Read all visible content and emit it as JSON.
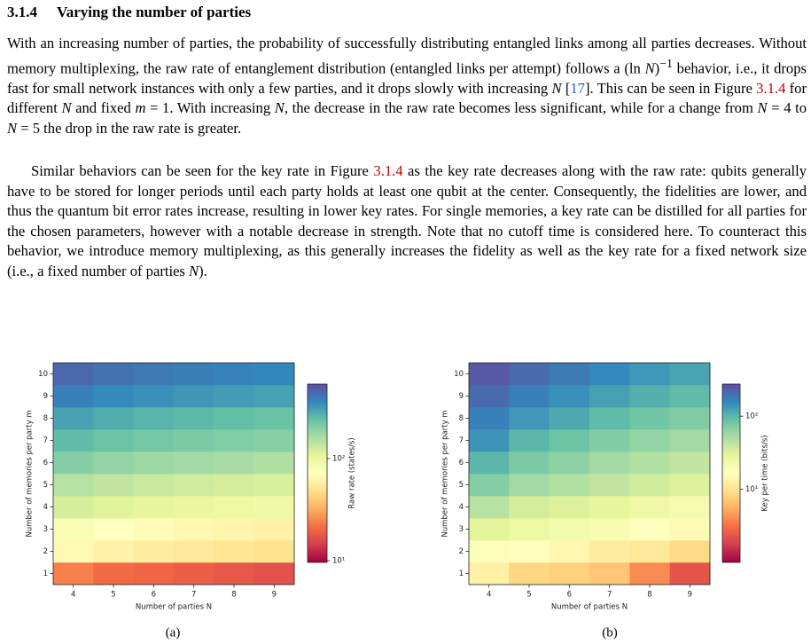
{
  "heading": {
    "number": "3.1.4",
    "title": "Varying the number of parties"
  },
  "paragraphs": [
    [
      "With an increasing number of parties, the probability of successfully distributing entangled links among all parties decreases. Without memory multiplexing, the raw rate of entanglement distribution (entangled links per attempt) follows a ",
      "(ln ",
      "N",
      ")",
      "−1",
      " behavior, i.e., it drops fast for small network instances with only a few parties, and it drops slowly with increasing ",
      "N",
      " [",
      "17",
      "]. This can be seen in Figure ",
      "3.1.4",
      " for different ",
      "N",
      " and fixed ",
      "m",
      " = 1. With increasing ",
      "N",
      ", the decrease in the raw rate becomes less significant, while for a change from ",
      "N",
      " = 4 to ",
      "N",
      " = 5 the drop in the raw rate is greater."
    ],
    [
      "Similar behaviors can be seen for the key rate in Figure ",
      "3.1.4",
      " as the key rate decreases along with the raw rate: qubits generally have to be stored for longer periods until each party holds at least one qubit at the center. Consequently, the fidelities are lower, and thus the quantum bit error rates increase, resulting in lower key rates. For single memories, a key rate can be distilled for all parties for the chosen parameters, however with a notable decrease in strength.  Note that no cutoff time is considered here.  To counteract this behavior, we introduce memory multiplexing, as this generally increases the fidelity as well as the key rate for a fixed network size (i.e., a fixed number of parties ",
      "N",
      ")."
    ]
  ],
  "chart_data": [
    {
      "type": "heatmap",
      "caption": "(a)",
      "xlabel": "Number of parties N",
      "ylabel": "Number of memories per party m",
      "colorbar_label": "Raw rate (states/s)",
      "colormap": "Spectral",
      "color_scale": "log",
      "x": [
        4,
        5,
        6,
        7,
        8,
        9
      ],
      "y": [
        1,
        2,
        3,
        4,
        5,
        6,
        7,
        8,
        9,
        10
      ],
      "clim": [
        9.6,
        537
      ],
      "cticks": [
        {
          "value": 10,
          "label": "10¹"
        },
        {
          "value": 100,
          "label": "10²"
        }
      ],
      "values": [
        [
          24,
          21,
          20,
          19,
          18,
          17
        ],
        [
          66,
          60,
          57,
          54,
          52,
          50
        ],
        [
          80,
          72,
          68,
          65,
          62,
          60
        ],
        [
          120,
          110,
          104,
          100,
          96,
          93
        ],
        [
          150,
          140,
          132,
          126,
          122,
          118
        ],
        [
          200,
          185,
          175,
          168,
          162,
          156
        ],
        [
          250,
          235,
          222,
          212,
          205,
          198
        ],
        [
          300,
          280,
          265,
          255,
          245,
          238
        ],
        [
          380,
          355,
          340,
          325,
          315,
          305
        ],
        [
          450,
          420,
          400,
          385,
          372,
          360
        ]
      ]
    },
    {
      "type": "heatmap",
      "caption": "(b)",
      "xlabel": "Number of parties N",
      "ylabel": "Number of memories per party m",
      "colorbar_label": "Key per time (bits/s)",
      "colormap": "Spectral",
      "color_scale": "log",
      "x": [
        4,
        5,
        6,
        7,
        8,
        9
      ],
      "y": [
        1,
        2,
        3,
        4,
        5,
        6,
        7,
        8,
        9,
        10
      ],
      "clim": [
        1,
        275
      ],
      "cticks": [
        {
          "value": 10,
          "label": "10¹"
        },
        {
          "value": 100,
          "label": "10²"
        }
      ],
      "values": [
        [
          12.6,
          8.5,
          8,
          7,
          4,
          2.3
        ],
        [
          18,
          16,
          14,
          12,
          11,
          9
        ],
        [
          30,
          25,
          22,
          20,
          17,
          15
        ],
        [
          45,
          35,
          32,
          28,
          24,
          21
        ],
        [
          70,
          55,
          48,
          42,
          36,
          32
        ],
        [
          100,
          75,
          65,
          55,
          48,
          42
        ],
        [
          140,
          100,
          85,
          72,
          62,
          55
        ],
        [
          170,
          135,
          115,
          95,
          82,
          72
        ],
        [
          210,
          170,
          145,
          125,
          108,
          95
        ],
        [
          250,
          210,
          180,
          155,
          135,
          120
        ]
      ]
    }
  ]
}
